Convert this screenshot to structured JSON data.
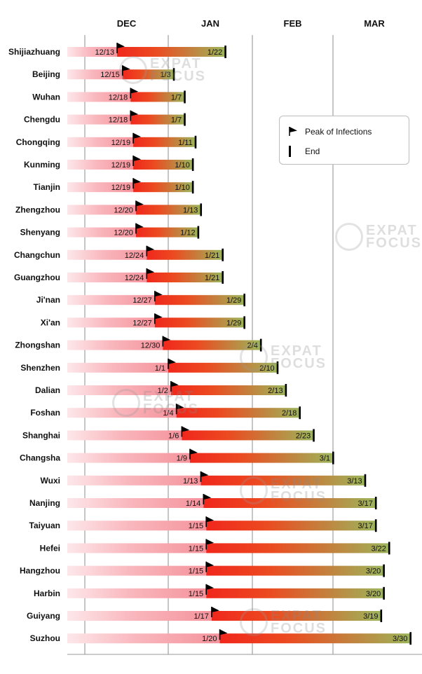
{
  "chart_data": {
    "type": "gantt",
    "months": [
      "DEC",
      "JAN",
      "FEB",
      "MAR"
    ],
    "legend": {
      "peak_label": "Peak of Infections",
      "end_label": "End"
    },
    "colors": {
      "pre_peak": "#f7a1a8",
      "post_peak_start": "#f0271c",
      "post_peak_end": "#9cb55a",
      "marker": "#000000"
    },
    "rows": [
      {
        "city": "Shijiazhuang",
        "peak": "12/13",
        "end": "1/22"
      },
      {
        "city": "Beijing",
        "peak": "12/15",
        "end": "1/3"
      },
      {
        "city": "Wuhan",
        "peak": "12/18",
        "end": "1/7"
      },
      {
        "city": "Chengdu",
        "peak": "12/18",
        "end": "1/7"
      },
      {
        "city": "Chongqing",
        "peak": "12/19",
        "end": "1/11"
      },
      {
        "city": "Kunming",
        "peak": "12/19",
        "end": "1/10"
      },
      {
        "city": "Tianjin",
        "peak": "12/19",
        "end": "1/10"
      },
      {
        "city": "Zhengzhou",
        "peak": "12/20",
        "end": "1/13"
      },
      {
        "city": "Shenyang",
        "peak": "12/20",
        "end": "1/12"
      },
      {
        "city": "Changchun",
        "peak": "12/24",
        "end": "1/21"
      },
      {
        "city": "Guangzhou",
        "peak": "12/24",
        "end": "1/21"
      },
      {
        "city": "Ji'nan",
        "peak": "12/27",
        "end": "1/29"
      },
      {
        "city": "Xi'an",
        "peak": "12/27",
        "end": "1/29"
      },
      {
        "city": "Zhongshan",
        "peak": "12/30",
        "end": "2/4"
      },
      {
        "city": "Shenzhen",
        "peak": "1/1",
        "end": "2/10"
      },
      {
        "city": "Dalian",
        "peak": "1/2",
        "end": "2/13"
      },
      {
        "city": "Foshan",
        "peak": "1/4",
        "end": "2/18"
      },
      {
        "city": "Shanghai",
        "peak": "1/6",
        "end": "2/23"
      },
      {
        "city": "Changsha",
        "peak": "1/9",
        "end": "3/1"
      },
      {
        "city": "Wuxi",
        "peak": "1/13",
        "end": "3/13"
      },
      {
        "city": "Nanjing",
        "peak": "1/14",
        "end": "3/17"
      },
      {
        "city": "Taiyuan",
        "peak": "1/15",
        "end": "3/17"
      },
      {
        "city": "Hefei",
        "peak": "1/15",
        "end": "3/22"
      },
      {
        "city": "Hangzhou",
        "peak": "1/15",
        "end": "3/20"
      },
      {
        "city": "Harbin",
        "peak": "1/15",
        "end": "3/20"
      },
      {
        "city": "Guiyang",
        "peak": "1/17",
        "end": "3/19"
      },
      {
        "city": "Suzhou",
        "peak": "1/20",
        "end": "3/30"
      }
    ]
  },
  "watermark": {
    "line1": "EXPAT",
    "line2": "FOCUS"
  }
}
